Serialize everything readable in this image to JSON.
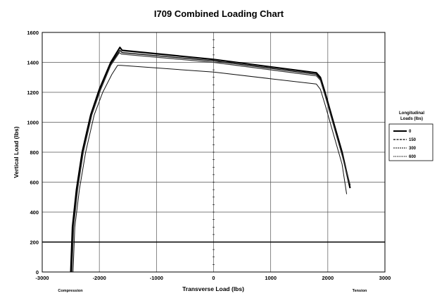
{
  "chart_data": {
    "type": "line",
    "title": "I709 Combined Loading Chart",
    "xlabel": "Transverse Load (lbs)",
    "ylabel": "Vertical Load (lbs)",
    "xlim": [
      -3000,
      3000
    ],
    "ylim": [
      0,
      1600
    ],
    "xticks": [
      "-3000",
      "-2000",
      "-1000",
      "0",
      "1000",
      "2000",
      "3000"
    ],
    "yticks": [
      "0",
      "200",
      "400",
      "600",
      "800",
      "1000",
      "1200",
      "1400",
      "1600"
    ],
    "x_notes": {
      "left": "Compression",
      "right": "Tension"
    },
    "grid": true,
    "reference_line_y": 200,
    "legend": {
      "title_line1": "Longitudinal",
      "title_line2": "Loads (lbs)",
      "placement": "right"
    },
    "series": [
      {
        "name": "0",
        "color": "#000000",
        "width": 2.2,
        "points": [
          [
            -2500,
            0
          ],
          [
            -2470,
            300
          ],
          [
            -2400,
            550
          ],
          [
            -2300,
            800
          ],
          [
            -2150,
            1050
          ],
          [
            -2000,
            1220
          ],
          [
            -1800,
            1400
          ],
          [
            -1640,
            1500
          ],
          [
            -1600,
            1480
          ],
          [
            0,
            1420
          ],
          [
            1800,
            1330
          ],
          [
            1870,
            1300
          ],
          [
            1950,
            1200
          ],
          [
            2100,
            1000
          ],
          [
            2250,
            800
          ],
          [
            2390,
            560
          ]
        ]
      },
      {
        "name": "150",
        "color": "#000000",
        "width": 1.3,
        "points": [
          [
            -2490,
            0
          ],
          [
            -2460,
            300
          ],
          [
            -2390,
            550
          ],
          [
            -2290,
            800
          ],
          [
            -2140,
            1050
          ],
          [
            -1990,
            1220
          ],
          [
            -1800,
            1390
          ],
          [
            -1640,
            1480
          ],
          [
            -1600,
            1465
          ],
          [
            0,
            1410
          ],
          [
            1800,
            1320
          ],
          [
            1870,
            1290
          ],
          [
            1950,
            1190
          ],
          [
            2100,
            990
          ],
          [
            2250,
            790
          ],
          [
            2390,
            580
          ]
        ]
      },
      {
        "name": "300",
        "color": "#333333",
        "width": 1.2,
        "points": [
          [
            -2480,
            0
          ],
          [
            -2450,
            300
          ],
          [
            -2380,
            550
          ],
          [
            -2280,
            800
          ],
          [
            -2130,
            1050
          ],
          [
            -1980,
            1215
          ],
          [
            -1800,
            1380
          ],
          [
            -1650,
            1465
          ],
          [
            -1610,
            1455
          ],
          [
            0,
            1400
          ],
          [
            1800,
            1310
          ],
          [
            1870,
            1280
          ],
          [
            1950,
            1180
          ],
          [
            2100,
            980
          ],
          [
            2250,
            780
          ],
          [
            2380,
            590
          ]
        ]
      },
      {
        "name": "600",
        "color": "#111111",
        "width": 1.0,
        "points": [
          [
            -2460,
            0
          ],
          [
            -2430,
            300
          ],
          [
            -2350,
            550
          ],
          [
            -2240,
            800
          ],
          [
            -2090,
            1050
          ],
          [
            -1940,
            1200
          ],
          [
            -1780,
            1320
          ],
          [
            -1680,
            1380
          ],
          [
            -1620,
            1380
          ],
          [
            0,
            1335
          ],
          [
            1800,
            1255
          ],
          [
            1870,
            1220
          ],
          [
            1950,
            1120
          ],
          [
            2100,
            920
          ],
          [
            2250,
            720
          ],
          [
            2330,
            520
          ]
        ]
      }
    ]
  }
}
